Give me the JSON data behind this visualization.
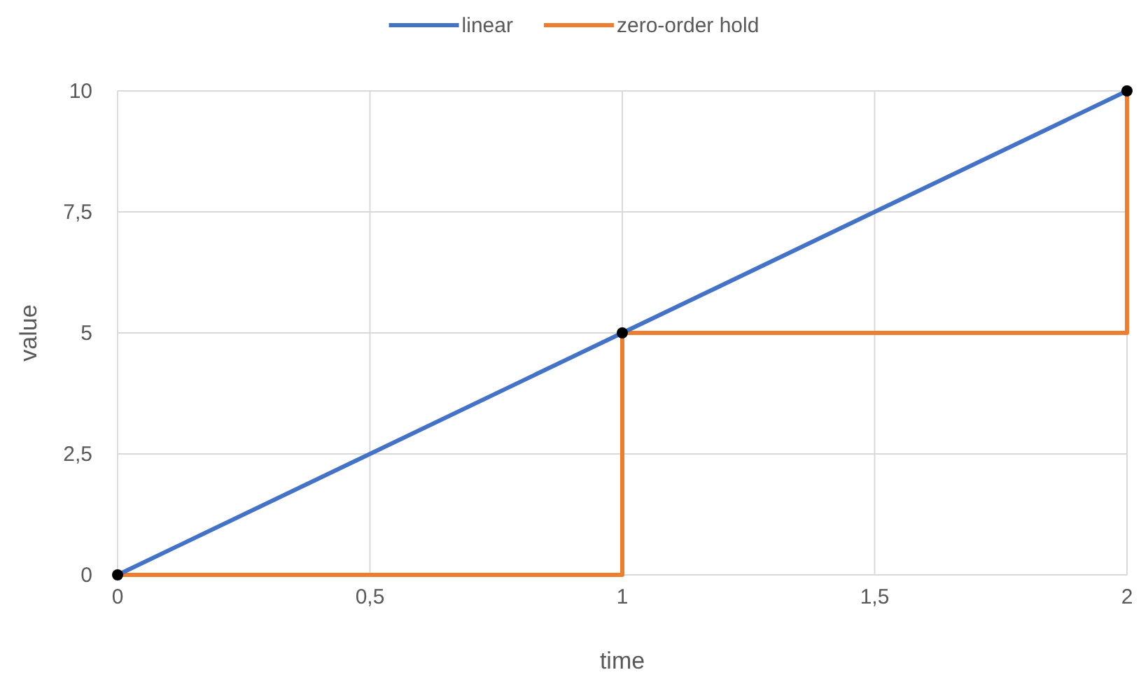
{
  "chart_data": {
    "type": "line",
    "xlabel": "time",
    "ylabel": "value",
    "x": [
      0,
      1,
      2
    ],
    "series": [
      {
        "name": "linear",
        "color": "#4472c4",
        "values": [
          0,
          5,
          10
        ]
      },
      {
        "name": "zero-order hold",
        "type": "step",
        "color": "#ed7d31",
        "values": [
          0,
          5,
          10
        ]
      },
      {
        "type": "scatter",
        "color": "#000000",
        "marker": "circle",
        "values": [
          0,
          5,
          10
        ]
      }
    ],
    "xlim": [
      0,
      2
    ],
    "xticks": [
      0,
      {
        "value": 0.5,
        "label": "0,5"
      },
      1,
      {
        "value": 1.5,
        "label": "1,5"
      },
      2
    ],
    "ylim": [
      0,
      10
    ],
    "yticks": [
      0,
      {
        "value": 2.5,
        "label": "2,5"
      },
      5,
      {
        "value": 7.5,
        "label": "7,5"
      },
      10
    ],
    "grid": true,
    "legend": "top"
  }
}
